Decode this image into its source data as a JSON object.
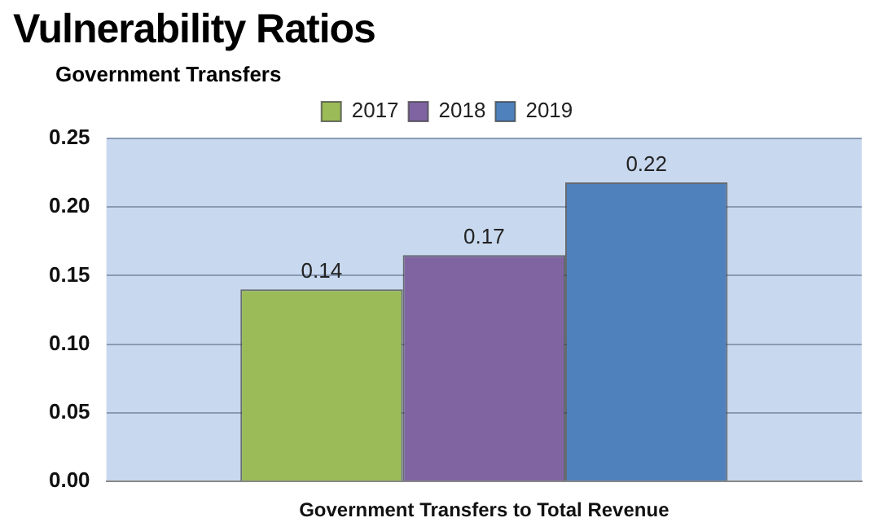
{
  "chart_data": {
    "type": "bar",
    "title": "Vulnerability Ratios",
    "subtitle": "Government Transfers",
    "categories": [
      "Government Transfers to Total Revenue"
    ],
    "series": [
      {
        "name": "2017",
        "color": "#9bbb59",
        "values": [
          0.14
        ],
        "value_labels": [
          "0.14"
        ]
      },
      {
        "name": "2018",
        "color": "#8064a2",
        "values": [
          0.165
        ],
        "value_labels": [
          "0.17"
        ]
      },
      {
        "name": "2019",
        "color": "#4f81bd",
        "values": [
          0.218
        ],
        "value_labels": [
          "0.22"
        ]
      }
    ],
    "ylim": [
      0,
      0.25
    ],
    "yticks": [
      {
        "value": 0,
        "label": "0.00"
      },
      {
        "value": 0.05,
        "label": "0.05"
      },
      {
        "value": 0.1,
        "label": "0.10"
      },
      {
        "value": 0.15,
        "label": "0.15"
      },
      {
        "value": 0.2,
        "label": "0.20"
      },
      {
        "value": 0.25,
        "label": "0.25"
      }
    ],
    "grid": "y",
    "legend": "top"
  }
}
